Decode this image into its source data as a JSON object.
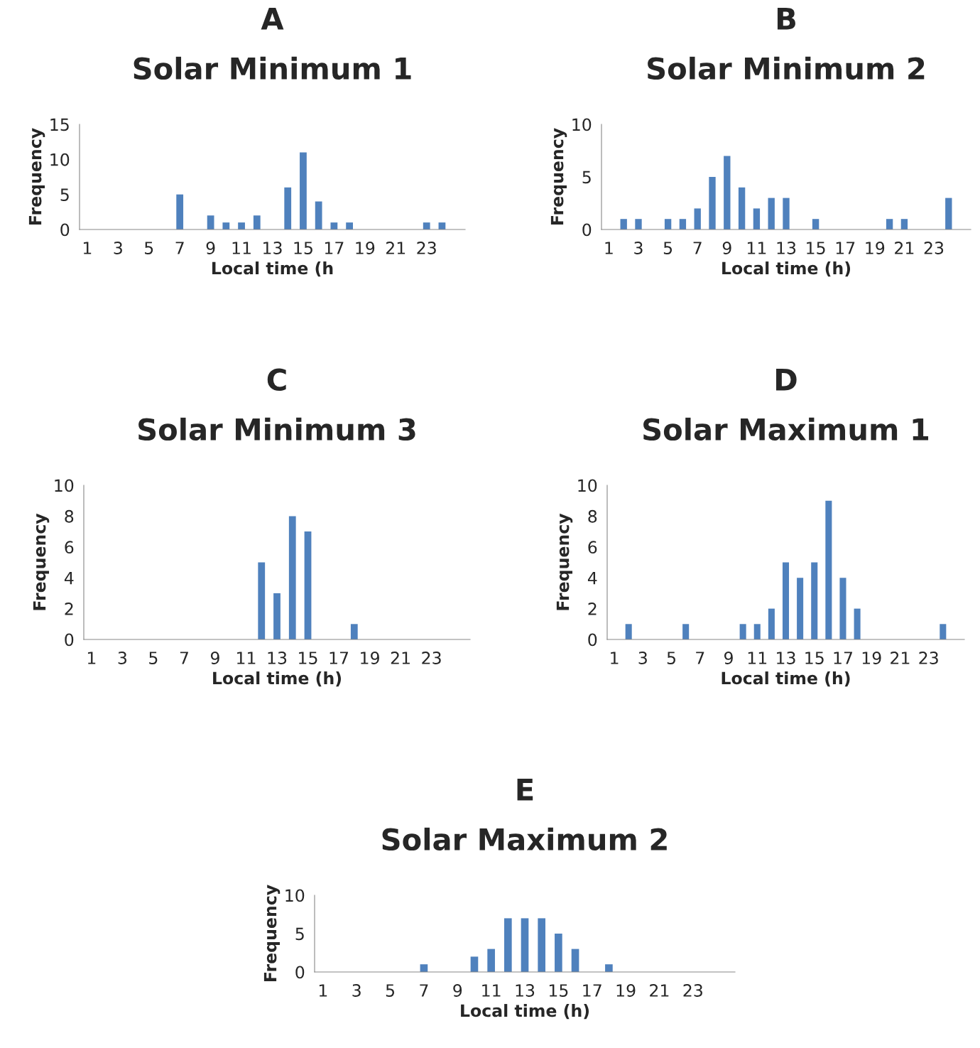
{
  "chart_data": [
    {
      "type": "bar",
      "title": "A",
      "subtitle": "Solar Minimum 1",
      "xlabel": "Local time (h",
      "ylabel": "Frequency",
      "color": "#4f81bd",
      "categories": [
        "1",
        null,
        "3",
        null,
        "5",
        null,
        "7",
        null,
        "9",
        null,
        "11",
        null,
        "13",
        null,
        "15",
        null,
        "17",
        null,
        "19",
        null,
        "21",
        null,
        "23",
        null,
        null
      ],
      "values": [
        0,
        0,
        0,
        0,
        0,
        0,
        5,
        0,
        2,
        1,
        1,
        2,
        0,
        6,
        11,
        4,
        1,
        1,
        0,
        0,
        0,
        0,
        1,
        1,
        0
      ],
      "ylim": [
        0,
        15
      ],
      "yticks": [
        0,
        5,
        10,
        15
      ],
      "grid": false,
      "legend": false
    },
    {
      "type": "bar",
      "title": "B",
      "subtitle": "Solar Minimum 2",
      "xlabel": "Local time (h)",
      "ylabel": "Frequency",
      "color": "#4f81bd",
      "categories": [
        "1",
        null,
        "3",
        null,
        "5",
        null,
        "7",
        null,
        "9",
        null,
        "11",
        null,
        "13",
        null,
        "15",
        null,
        "17",
        null,
        "19",
        null,
        "21",
        null,
        "23",
        null,
        null
      ],
      "values": [
        0,
        1,
        1,
        0,
        1,
        1,
        2,
        5,
        7,
        4,
        2,
        3,
        3,
        0,
        1,
        0,
        0,
        0,
        0,
        1,
        1,
        0,
        0,
        3,
        0
      ],
      "ylim": [
        0,
        10
      ],
      "yticks": [
        0,
        5,
        10
      ],
      "grid": false,
      "legend": false
    },
    {
      "type": "bar",
      "title": "C",
      "subtitle": "Solar Minimum 3",
      "xlabel": "Local time (h)",
      "ylabel": "Frequency",
      "color": "#4f81bd",
      "categories": [
        "1",
        null,
        "3",
        null,
        "5",
        null,
        "7",
        null,
        "9",
        null,
        "11",
        null,
        "13",
        null,
        "15",
        null,
        "17",
        null,
        "19",
        null,
        "21",
        null,
        "23",
        null,
        null
      ],
      "values": [
        0,
        0,
        0,
        0,
        0,
        0,
        0,
        0,
        0,
        0,
        0,
        5,
        3,
        8,
        7,
        0,
        0,
        1,
        0,
        0,
        0,
        0,
        0,
        0,
        0
      ],
      "ylim": [
        0,
        10
      ],
      "yticks": [
        0,
        2,
        4,
        6,
        8,
        10
      ],
      "grid": false,
      "legend": false
    },
    {
      "type": "bar",
      "title": "D",
      "subtitle": "Solar Maximum 1",
      "xlabel": "Local time (h)",
      "ylabel": "Frequency",
      "color": "#4f81bd",
      "categories": [
        "1",
        null,
        "3",
        null,
        "5",
        null,
        "7",
        null,
        "9",
        null,
        "11",
        null,
        "13",
        null,
        "15",
        null,
        "17",
        null,
        "19",
        null,
        "21",
        null,
        "23",
        null,
        null
      ],
      "values": [
        0,
        1,
        0,
        0,
        0,
        1,
        0,
        0,
        0,
        1,
        1,
        2,
        5,
        4,
        5,
        9,
        4,
        2,
        0,
        0,
        0,
        0,
        0,
        1,
        0
      ],
      "ylim": [
        0,
        10
      ],
      "yticks": [
        0,
        2,
        4,
        6,
        8,
        10
      ],
      "grid": false,
      "legend": false
    },
    {
      "type": "bar",
      "title": "E",
      "subtitle": "Solar Maximum 2",
      "xlabel": "Local time (h)",
      "ylabel": "Frequency",
      "color": "#4f81bd",
      "categories": [
        "1",
        null,
        "3",
        null,
        "5",
        null,
        "7",
        null,
        "9",
        null,
        "11",
        null,
        "13",
        null,
        "15",
        null,
        "17",
        null,
        "19",
        null,
        "21",
        null,
        "23",
        null,
        null
      ],
      "values": [
        0,
        0,
        0,
        0,
        0,
        0,
        1,
        0,
        0,
        2,
        3,
        7,
        7,
        7,
        5,
        3,
        0,
        1,
        0,
        0,
        0,
        0,
        0,
        0,
        0
      ],
      "ylim": [
        0,
        10
      ],
      "yticks": [
        0,
        5,
        10
      ],
      "grid": false,
      "legend": false
    }
  ]
}
